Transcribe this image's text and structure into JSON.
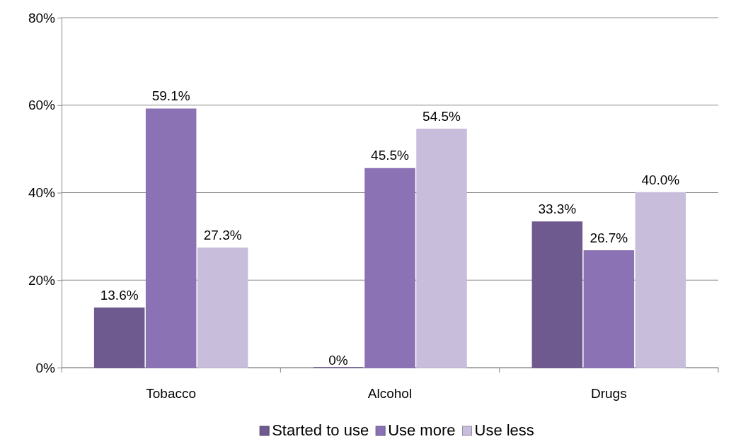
{
  "chart_data": {
    "type": "bar",
    "categories": [
      "Tobacco",
      "Alcohol",
      "Drugs"
    ],
    "series": [
      {
        "name": "Started to use",
        "color": "#6e5a8e",
        "values": [
          13.6,
          0,
          33.3
        ],
        "value_labels": [
          "13.6%",
          "0%",
          "33.3%"
        ]
      },
      {
        "name": "Use more",
        "color": "#8a72b4",
        "values": [
          59.1,
          45.5,
          26.7
        ],
        "value_labels": [
          "59.1%",
          "45.5%",
          "26.7%"
        ]
      },
      {
        "name": "Use less",
        "color": "#c8bedc",
        "values": [
          27.3,
          54.5,
          40.0
        ],
        "value_labels": [
          "27.3%",
          "54.5%",
          "40.0%"
        ]
      }
    ],
    "ylim": [
      0,
      80
    ],
    "yticks": [
      {
        "value": 0,
        "label": "0%"
      },
      {
        "value": 20,
        "label": "20%"
      },
      {
        "value": 40,
        "label": "40%"
      },
      {
        "value": 60,
        "label": "60%"
      },
      {
        "value": 80,
        "label": "80%"
      }
    ],
    "grid": "y",
    "legend": "bottom"
  }
}
